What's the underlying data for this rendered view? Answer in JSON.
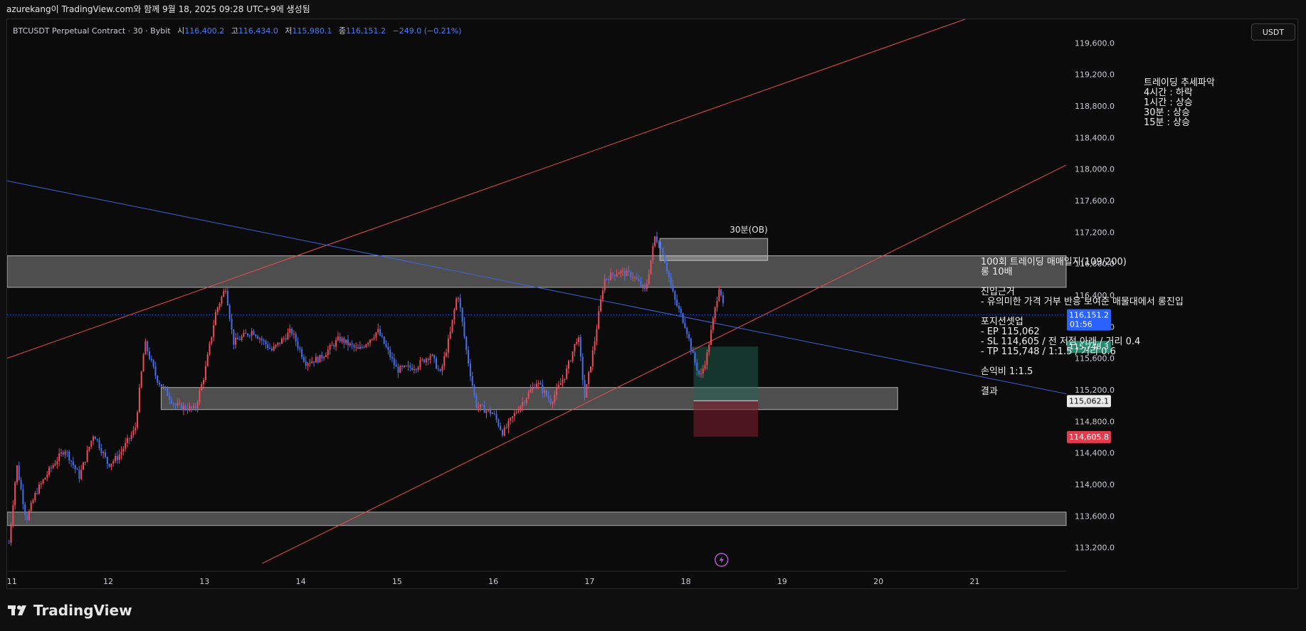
{
  "header": {
    "caption": "azurekang이 TradingView.com와 함께 9월 18, 2025 09:28 UTC+9에 생성됨"
  },
  "symbol": {
    "name": "BTCUSDT Perpetual Contract · 30 · Bybit",
    "open_label": "시",
    "open": "116,400.2",
    "high_label": "고",
    "high": "116,434.0",
    "low_label": "저",
    "low": "115,980.1",
    "close_label": "종",
    "close": "116,151.2",
    "change": "−249.0 (−0.21%)"
  },
  "currency_button": "USDT",
  "brand": "TradingView",
  "colors": {
    "background": "#0b0b0b",
    "up_candle": "#ef4b5a",
    "down_candle": "#4670e8",
    "red_trend": "#e84b55",
    "blue_trend": "#3f63d6",
    "zone": "#ffffff",
    "last_price": "#2962ff",
    "target_price": "#1f8a6e",
    "stop_price": "#e23b4c"
  },
  "chart_data": {
    "type": "candlestick",
    "symbol": "BTCUSDT",
    "interval": "30",
    "x_ticks": [
      "11",
      "12",
      "13",
      "14",
      "15",
      "16",
      "17",
      "18",
      "19",
      "20",
      "21"
    ],
    "y_ticks": [
      "113,200.0",
      "113,600.0",
      "114,000.0",
      "114,400.0",
      "114,800.0",
      "115,200.0",
      "115,600.0",
      "116,000.0",
      "116,400.0",
      "116,800.0",
      "117,200.0",
      "117,600.0",
      "118,000.0",
      "118,400.0",
      "118,800.0",
      "119,200.0",
      "119,600.0"
    ],
    "ylim": [
      112900,
      119900
    ],
    "xlim": [
      10.95,
      21.95
    ],
    "price_path": [
      [
        10.97,
        113260
      ],
      [
        11.05,
        114250
      ],
      [
        11.15,
        113550
      ],
      [
        11.25,
        113900
      ],
      [
        11.4,
        114200
      ],
      [
        11.55,
        114450
      ],
      [
        11.7,
        114100
      ],
      [
        11.85,
        114650
      ],
      [
        12.0,
        114250
      ],
      [
        12.1,
        114350
      ],
      [
        12.28,
        114700
      ],
      [
        12.38,
        115800
      ],
      [
        12.5,
        115350
      ],
      [
        12.7,
        115000
      ],
      [
        12.9,
        114950
      ],
      [
        13.0,
        115400
      ],
      [
        13.12,
        116200
      ],
      [
        13.22,
        116500
      ],
      [
        13.3,
        115800
      ],
      [
        13.5,
        115950
      ],
      [
        13.7,
        115700
      ],
      [
        13.9,
        115950
      ],
      [
        14.05,
        115550
      ],
      [
        14.2,
        115600
      ],
      [
        14.4,
        115850
      ],
      [
        14.6,
        115700
      ],
      [
        14.8,
        115950
      ],
      [
        15.0,
        115450
      ],
      [
        15.2,
        115500
      ],
      [
        15.35,
        115650
      ],
      [
        15.45,
        115400
      ],
      [
        15.55,
        115900
      ],
      [
        15.63,
        116450
      ],
      [
        15.72,
        115700
      ],
      [
        15.82,
        115000
      ],
      [
        16.0,
        114900
      ],
      [
        16.1,
        114650
      ],
      [
        16.25,
        114950
      ],
      [
        16.45,
        115300
      ],
      [
        16.6,
        115050
      ],
      [
        16.75,
        115400
      ],
      [
        16.88,
        115900
      ],
      [
        16.95,
        115100
      ],
      [
        17.05,
        115800
      ],
      [
        17.15,
        116600
      ],
      [
        17.3,
        116700
      ],
      [
        17.45,
        116650
      ],
      [
        17.58,
        116450
      ],
      [
        17.68,
        117150
      ],
      [
        17.76,
        116950
      ],
      [
        17.88,
        116350
      ],
      [
        18.0,
        116000
      ],
      [
        18.08,
        115600
      ],
      [
        18.15,
        115350
      ],
      [
        18.22,
        115650
      ],
      [
        18.3,
        116200
      ],
      [
        18.35,
        116550
      ],
      [
        18.4,
        116151
      ]
    ],
    "trendlines": [
      {
        "color": "red",
        "from": [
          10.95,
          115600
        ],
        "to": [
          20.9,
          119900
        ]
      },
      {
        "color": "red",
        "from": [
          13.6,
          113000
        ],
        "to": [
          21.95,
          118050
        ]
      },
      {
        "color": "blue",
        "from": [
          10.95,
          117850
        ],
        "to": [
          21.95,
          115150
        ]
      }
    ],
    "zones": [
      {
        "x": [
          10.95,
          21.95
        ],
        "y": [
          116500,
          116900
        ]
      },
      {
        "x": [
          12.55,
          20.2
        ],
        "y": [
          114950,
          115230
        ]
      },
      {
        "x": [
          10.95,
          21.95
        ],
        "y": [
          113480,
          113650
        ]
      },
      {
        "x": [
          17.73,
          18.85
        ],
        "y": [
          116840,
          117120
        ],
        "label": "30분(OB)"
      }
    ],
    "position": {
      "entry": 115062.1,
      "target": 115748.3,
      "stop": 114605.8,
      "x": [
        18.08,
        18.75
      ]
    },
    "price_labels": [
      {
        "value": "116,151.2",
        "sub": "01:56",
        "price": 116151.2,
        "kind": "last"
      },
      {
        "value": "115,748.3",
        "price": 115748.3,
        "kind": "target"
      },
      {
        "value": "115,062.1",
        "price": 115062.1,
        "kind": "entry"
      },
      {
        "value": "114,605.8",
        "price": 114605.8,
        "kind": "stop"
      }
    ],
    "annotations": {
      "trend_title": "트레이딩 추세파악",
      "trend_lines": [
        "4시간 : 하락",
        "1시간 : 상승",
        "30분 : 상승",
        "15분 : 상승"
      ],
      "journal_title": "100회 트레이딩 매매일지(109/200)",
      "journal_lines": [
        "롱 10배",
        "",
        "진입근거",
        "- 유의미한 가격 거부 반응 보여준 매물대에서 롱진입",
        "",
        "포지션셋업",
        "- EP 115,062",
        "- SL 114,605 / 전 저점 아래 / 거리 0.4",
        "- TP 115,748 / 1:1.5 / 거리 0.6",
        "",
        "손익비 1:1.5",
        "",
        "결과"
      ]
    }
  }
}
